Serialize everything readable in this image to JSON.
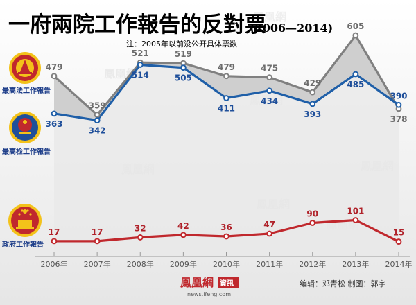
{
  "header": {
    "title": "一府兩院工作報告的反對票",
    "years_range": "(2006—2014)",
    "note": "注：2005年以前没公开具体票数"
  },
  "labels": {
    "supreme_court": "最高法工作報告",
    "procuratorate": "最高检工作報告",
    "government": "政府工作報告"
  },
  "footer": {
    "logo": "鳳凰網",
    "logo_badge": "資訊",
    "logo_url": "news.ifeng.com",
    "credits": "编辑：邓青松  制图：郭宇"
  },
  "watermark": "鳳凰網",
  "colors": {
    "court": "#808080",
    "procuratorate": "#1f5fa8",
    "government": "#c0282d",
    "title": "#c0282d",
    "band": "#cfcfcf"
  },
  "chart_data": {
    "type": "line",
    "x": [
      "2006年",
      "2007年",
      "2008年",
      "2009年",
      "2010年",
      "2011年",
      "2012年",
      "2013年",
      "2014年"
    ],
    "series": [
      {
        "name": "最高法工作報告",
        "values": [
          479,
          359,
          521,
          519,
          479,
          475,
          429,
          605,
          378
        ],
        "color": "#808080"
      },
      {
        "name": "最高检工作報告",
        "values": [
          363,
          342,
          514,
          505,
          411,
          434,
          393,
          485,
          390
        ],
        "color": "#1f5fa8"
      },
      {
        "name": "政府工作報告",
        "values": [
          17,
          17,
          32,
          42,
          36,
          47,
          90,
          101,
          15
        ],
        "color": "#c0282d"
      }
    ]
  }
}
